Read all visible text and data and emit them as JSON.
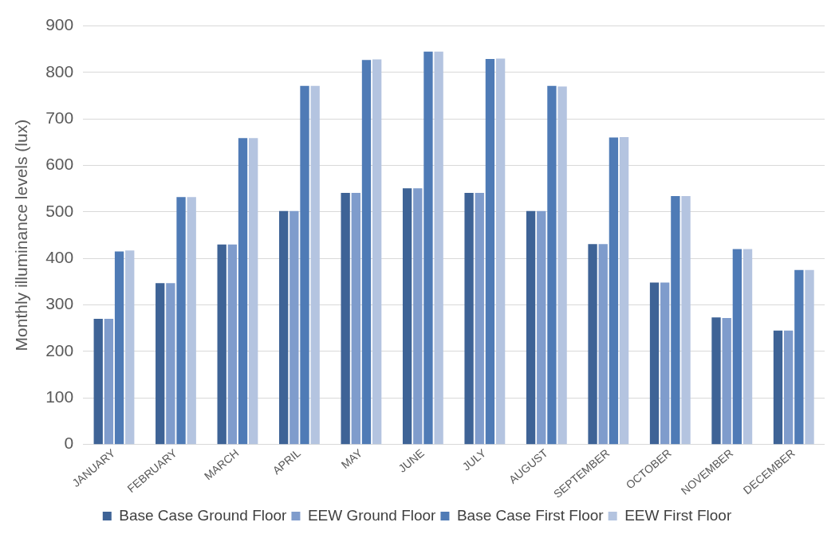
{
  "chart_data": {
    "type": "bar",
    "ylabel": "Monthly illuminance levels (lux)",
    "categories": [
      "JANUARY",
      "FEBRUARY",
      "MARCH",
      "APRIL",
      "MAY",
      "JUNE",
      "JULY",
      "AUGUST",
      "SEPTEMBER",
      "OCTOBER",
      "NOVEMBER",
      "DECEMBER"
    ],
    "series": [
      {
        "name": "Base Case Ground Floor",
        "color": "#3e6396",
        "values": [
          270,
          347,
          430,
          502,
          541,
          551,
          541,
          502,
          431,
          348,
          273,
          245
        ]
      },
      {
        "name": "EEW Ground Floor",
        "color": "#7f9ccc",
        "values": [
          270,
          347,
          430,
          502,
          541,
          551,
          541,
          502,
          431,
          348,
          272,
          245
        ]
      },
      {
        "name": "Base Case First Floor",
        "color": "#4f7bb6",
        "values": [
          415,
          532,
          659,
          771,
          827,
          845,
          829,
          771,
          660,
          534,
          420,
          375
        ]
      },
      {
        "name": "EEW First Floor",
        "color": "#b4c4e0",
        "values": [
          417,
          532,
          659,
          771,
          828,
          845,
          830,
          770,
          661,
          534,
          420,
          375
        ]
      }
    ],
    "ylim": [
      0,
      900
    ],
    "yticks": [
      0,
      100,
      200,
      300,
      400,
      500,
      600,
      700,
      800,
      900
    ],
    "grid": "y",
    "legend": "bottom"
  }
}
